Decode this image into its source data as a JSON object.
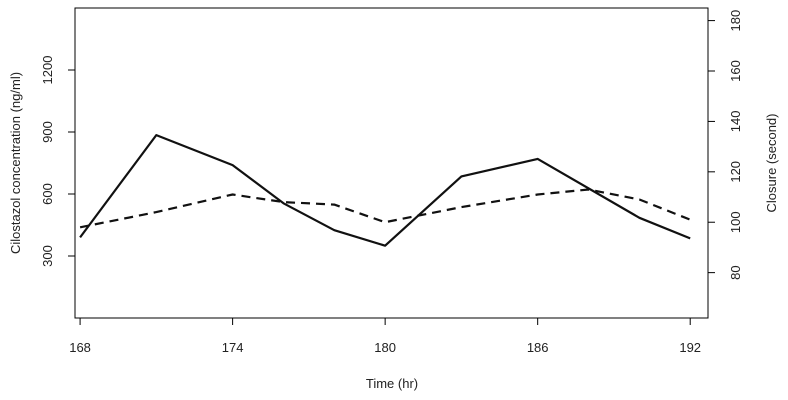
{
  "chart_data": {
    "type": "line",
    "xlabel": "Time (hr)",
    "ylabel_left": "Cilostazol concentration (ng/ml)",
    "ylabel_right": "Closure (second)",
    "xlim": [
      167.8,
      192.7
    ],
    "ylim_left": [
      0,
      1500
    ],
    "ylim_right": [
      62,
      185
    ],
    "x_ticks": [
      168,
      174,
      180,
      186,
      192
    ],
    "y_left_ticks": [
      300,
      600,
      900,
      1200
    ],
    "y_right_ticks": [
      80,
      100,
      120,
      140,
      160,
      180
    ],
    "grid": false,
    "series": [
      {
        "axis": "left",
        "style": "solid",
        "x": [
          168,
          171,
          174,
          176,
          178,
          180,
          183,
          186,
          190,
          192
        ],
        "values": [
          390,
          885,
          740,
          555,
          425,
          350,
          685,
          770,
          485,
          385
        ]
      },
      {
        "axis": "right",
        "style": "dashed",
        "x": [
          168,
          171,
          174,
          176,
          178,
          180,
          183,
          186,
          188,
          190,
          192
        ],
        "values": [
          98,
          104,
          111,
          108,
          107,
          100,
          106,
          111,
          113,
          109,
          101
        ]
      }
    ]
  }
}
